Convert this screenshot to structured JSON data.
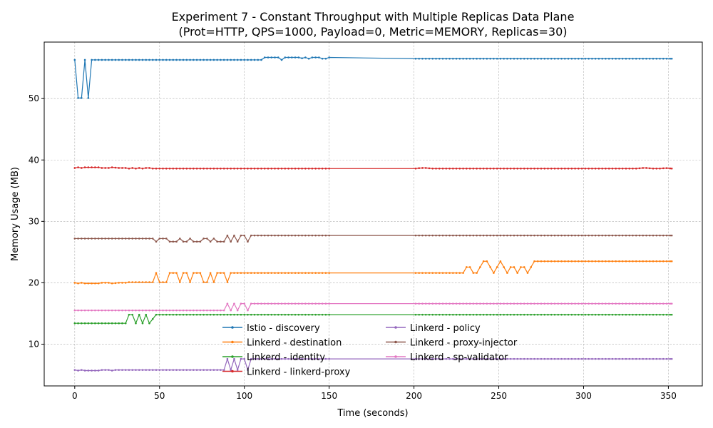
{
  "chart_data": {
    "type": "line",
    "title": "Experiment 7 - Constant Throughput with Multiple Replicas Data Plane",
    "subtitle": "(Prot=HTTP, QPS=1000, Payload=0, Metric=MEMORY, Replicas=30)",
    "xlabel": "Time (seconds)",
    "ylabel": "Memory Usage (MB)",
    "xlim": [
      -18,
      370
    ],
    "ylim": [
      3.2,
      59.2
    ],
    "xticks": [
      0,
      50,
      100,
      150,
      200,
      250,
      300,
      350
    ],
    "yticks": [
      10,
      20,
      30,
      40,
      50
    ],
    "grid": true,
    "legend_placement": "lower-center",
    "sample_step_seconds": 2,
    "gap": [
      150,
      201
    ],
    "series": [
      {
        "name": "Istio - discovery",
        "color": "#1f77b4",
        "segments": [
          {
            "x": [
              0,
              150
            ],
            "points": [
              [
                0,
                56.3
              ],
              [
                1,
                56.3
              ],
              [
                2,
                50.1
              ],
              [
                4,
                50.1
              ],
              [
                6,
                56.3
              ],
              [
                7,
                50.1
              ],
              [
                9,
                50.1
              ],
              [
                10,
                56.3
              ],
              [
                110,
                56.3
              ],
              [
                111,
                56.7
              ],
              [
                118,
                56.7
              ],
              [
                119,
                56.3
              ],
              [
                120,
                56.7
              ],
              [
                122,
                56.3
              ],
              [
                123,
                56.7
              ],
              [
                132,
                56.7
              ],
              [
                133,
                56.5
              ],
              [
                136,
                56.7
              ],
              [
                138,
                56.5
              ],
              [
                140,
                56.7
              ],
              [
                144,
                56.7
              ],
              [
                146,
                56.5
              ],
              [
                148,
                56.5
              ],
              [
                150,
                56.7
              ]
            ]
          },
          {
            "x": [
              201,
              352
            ],
            "points": [
              [
                201,
                56.5
              ],
              [
                352,
                56.5
              ]
            ]
          }
        ]
      },
      {
        "name": "Linkerd - destination",
        "color": "#ff7f0e",
        "segments": [
          {
            "x": [
              0,
              150
            ],
            "points": [
              [
                0,
                20.0
              ],
              [
                2,
                19.9
              ],
              [
                4,
                20.0
              ],
              [
                6,
                19.9
              ],
              [
                14,
                19.9
              ],
              [
                16,
                20.0
              ],
              [
                20,
                20.0
              ],
              [
                22,
                19.9
              ],
              [
                26,
                20.0
              ],
              [
                30,
                20.0
              ],
              [
                32,
                20.1
              ],
              [
                46,
                20.1
              ],
              [
                48,
                21.6
              ],
              [
                50,
                20.1
              ],
              [
                54,
                20.1
              ],
              [
                56,
                21.6
              ],
              [
                60,
                21.6
              ],
              [
                62,
                20.1
              ],
              [
                64,
                21.6
              ],
              [
                66,
                21.6
              ],
              [
                68,
                20.1
              ],
              [
                70,
                21.6
              ],
              [
                74,
                21.6
              ],
              [
                76,
                20.1
              ],
              [
                78,
                20.1
              ],
              [
                80,
                21.6
              ],
              [
                82,
                20.1
              ],
              [
                84,
                21.6
              ],
              [
                88,
                21.6
              ],
              [
                90,
                20.1
              ],
              [
                92,
                21.6
              ],
              [
                150,
                21.6
              ]
            ]
          },
          {
            "x": [
              201,
              352
            ],
            "points": [
              [
                201,
                21.6
              ],
              [
                230,
                21.6
              ],
              [
                232,
                23.5
              ],
              [
                234,
                21.6
              ],
              [
                238,
                21.6
              ],
              [
                240,
                23.5
              ],
              [
                244,
                23.5
              ],
              [
                246,
                21.6
              ],
              [
                248,
                21.6
              ],
              [
                250,
                23.5
              ],
              [
                252,
                23.5
              ],
              [
                254,
                21.6
              ],
              [
                256,
                21.6
              ],
              [
                258,
                23.5
              ],
              [
                260,
                21.6
              ],
              [
                262,
                21.6
              ],
              [
                264,
                23.5
              ],
              [
                266,
                21.6
              ],
              [
                268,
                21.6
              ],
              [
                270,
                23.5
              ],
              [
                352,
                23.5
              ]
            ]
          }
        ]
      },
      {
        "name": "Linkerd - identity",
        "color": "#2ca02c",
        "segments": [
          {
            "x": [
              0,
              150
            ],
            "points": [
              [
                0,
                13.4
              ],
              [
                30,
                13.4
              ],
              [
                32,
                14.8
              ],
              [
                34,
                14.8
              ],
              [
                36,
                13.4
              ],
              [
                38,
                14.8
              ],
              [
                40,
                13.4
              ],
              [
                42,
                14.8
              ],
              [
                43,
                13.4
              ],
              [
                45,
                13.4
              ],
              [
                47,
                14.8
              ],
              [
                150,
                14.8
              ]
            ]
          },
          {
            "x": [
              201,
              352
            ],
            "points": [
              [
                201,
                14.8
              ],
              [
                352,
                14.8
              ]
            ]
          }
        ]
      },
      {
        "name": "Linkerd - linkerd-proxy",
        "color": "#d62728",
        "segments": [
          {
            "x": [
              0,
              150
            ],
            "points": [
              [
                0,
                38.7
              ],
              [
                2,
                38.8
              ],
              [
                4,
                38.7
              ],
              [
                6,
                38.8
              ],
              [
                14,
                38.8
              ],
              [
                16,
                38.7
              ],
              [
                20,
                38.7
              ],
              [
                22,
                38.8
              ],
              [
                26,
                38.7
              ],
              [
                30,
                38.7
              ],
              [
                32,
                38.6
              ],
              [
                34,
                38.7
              ],
              [
                36,
                38.6
              ],
              [
                38,
                38.7
              ],
              [
                40,
                38.6
              ],
              [
                42,
                38.7
              ],
              [
                44,
                38.7
              ],
              [
                46,
                38.6
              ],
              [
                150,
                38.6
              ]
            ]
          },
          {
            "x": [
              201,
              352
            ],
            "points": [
              [
                201,
                38.6
              ],
              [
                204,
                38.7
              ],
              [
                208,
                38.7
              ],
              [
                210,
                38.6
              ],
              [
                332,
                38.6
              ],
              [
                334,
                38.7
              ],
              [
                338,
                38.7
              ],
              [
                340,
                38.6
              ],
              [
                346,
                38.6
              ],
              [
                348,
                38.7
              ],
              [
                352,
                38.6
              ]
            ]
          }
        ]
      },
      {
        "name": "Linkerd - policy",
        "color": "#9467bd",
        "segments": [
          {
            "x": [
              0,
              150
            ],
            "points": [
              [
                0,
                5.8
              ],
              [
                2,
                5.7
              ],
              [
                4,
                5.8
              ],
              [
                6,
                5.7
              ],
              [
                14,
                5.7
              ],
              [
                16,
                5.8
              ],
              [
                20,
                5.8
              ],
              [
                22,
                5.7
              ],
              [
                24,
                5.8
              ],
              [
                88,
                5.8
              ],
              [
                90,
                7.6
              ],
              [
                92,
                5.8
              ],
              [
                94,
                7.6
              ],
              [
                96,
                5.8
              ],
              [
                98,
                7.6
              ],
              [
                100,
                7.6
              ],
              [
                102,
                5.8
              ],
              [
                104,
                7.6
              ],
              [
                150,
                7.6
              ]
            ]
          },
          {
            "x": [
              201,
              352
            ],
            "points": [
              [
                201,
                7.6
              ],
              [
                352,
                7.6
              ]
            ]
          }
        ]
      },
      {
        "name": "Linkerd - proxy-injector",
        "color": "#8c564b",
        "segments": [
          {
            "x": [
              0,
              150
            ],
            "points": [
              [
                0,
                27.2
              ],
              [
                46,
                27.2
              ],
              [
                48,
                26.7
              ],
              [
                50,
                27.2
              ],
              [
                54,
                27.2
              ],
              [
                56,
                26.7
              ],
              [
                60,
                26.7
              ],
              [
                62,
                27.2
              ],
              [
                64,
                26.7
              ],
              [
                66,
                26.7
              ],
              [
                68,
                27.2
              ],
              [
                70,
                26.7
              ],
              [
                74,
                26.7
              ],
              [
                76,
                27.2
              ],
              [
                78,
                27.2
              ],
              [
                80,
                26.7
              ],
              [
                82,
                27.2
              ],
              [
                84,
                26.7
              ],
              [
                88,
                26.7
              ],
              [
                90,
                27.7
              ],
              [
                92,
                26.7
              ],
              [
                94,
                27.7
              ],
              [
                96,
                26.7
              ],
              [
                98,
                27.7
              ],
              [
                100,
                27.7
              ],
              [
                102,
                26.7
              ],
              [
                104,
                27.7
              ],
              [
                150,
                27.7
              ]
            ]
          },
          {
            "x": [
              201,
              352
            ],
            "points": [
              [
                201,
                27.7
              ],
              [
                352,
                27.7
              ]
            ]
          }
        ]
      },
      {
        "name": "Linkerd - sp-validator",
        "color": "#e377c2",
        "segments": [
          {
            "x": [
              0,
              150
            ],
            "points": [
              [
                0,
                15.5
              ],
              [
                88,
                15.5
              ],
              [
                90,
                16.6
              ],
              [
                92,
                15.5
              ],
              [
                94,
                16.6
              ],
              [
                96,
                15.5
              ],
              [
                98,
                16.6
              ],
              [
                100,
                16.6
              ],
              [
                102,
                15.5
              ],
              [
                104,
                16.6
              ],
              [
                150,
                16.6
              ]
            ]
          },
          {
            "x": [
              201,
              352
            ],
            "points": [
              [
                201,
                16.6
              ],
              [
                352,
                16.6
              ]
            ]
          }
        ]
      }
    ]
  }
}
